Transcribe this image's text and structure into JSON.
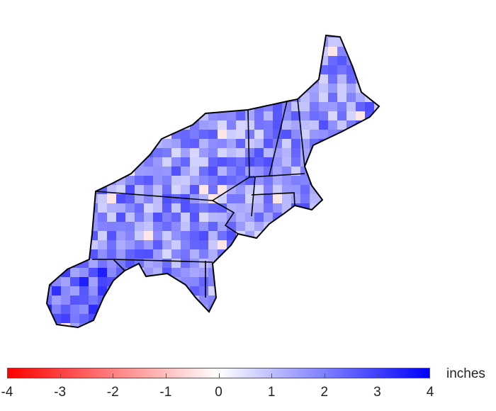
{
  "colorbar": {
    "unit_label": "inches",
    "ticks": [
      "-4",
      "-3",
      "-2",
      "-1",
      "0",
      "1",
      "2",
      "3",
      "4"
    ],
    "range": [
      -4,
      4
    ],
    "colors": {
      "low": "#ff0000",
      "mid": "#ffffff",
      "high": "#0000ff"
    }
  },
  "map": {
    "region": "Northeastern United States",
    "outline_color": "#000000"
  }
}
